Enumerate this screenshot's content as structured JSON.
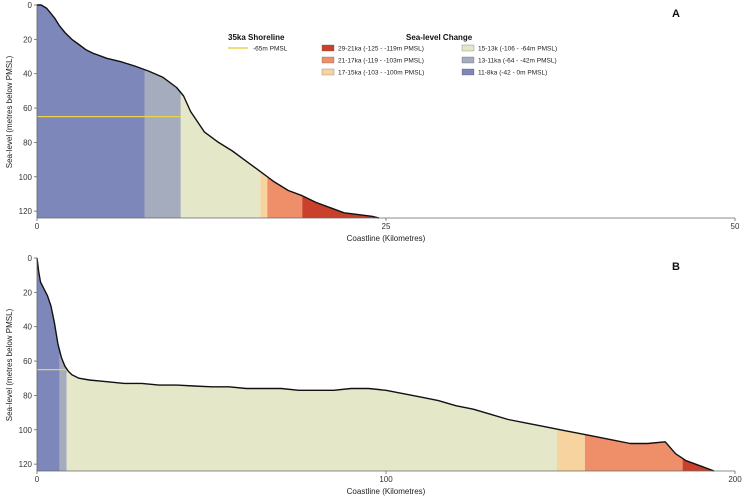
{
  "chart_data": [
    {
      "type": "area",
      "panel_label": "A",
      "xlabel": "Coastline (Kilometres)",
      "ylabel": "Sea-level (metres below PMSL)",
      "xlim": [
        0,
        50
      ],
      "ylim": [
        0,
        124
      ],
      "y_inverted": true,
      "x_ticks": [
        0,
        25,
        50
      ],
      "y_ticks": [
        0,
        20,
        40,
        60,
        80,
        100,
        120
      ],
      "grid": false,
      "profile": {
        "x": [
          0,
          0.3,
          0.7,
          1.0,
          1.3,
          1.6,
          2.0,
          2.5,
          3.0,
          3.5,
          4.0,
          5.0,
          6.0,
          7.0,
          8.0,
          9.0,
          10.0,
          10.5,
          11.0,
          12.0,
          13.0,
          14.0,
          15.0,
          16.0,
          17.0,
          18.0,
          19.0,
          20.0,
          21.0,
          22.0,
          23.0,
          24.0,
          24.5
        ],
        "depth": [
          0,
          0,
          2,
          5,
          8,
          12,
          16,
          20,
          23,
          26,
          28,
          31,
          33,
          35.5,
          38.5,
          42,
          48,
          53,
          62,
          74,
          80,
          85,
          91,
          97,
          103,
          108,
          111,
          115,
          118,
          121,
          122,
          123,
          124
        ]
      },
      "bands": [
        {
          "x0": 0,
          "x1": 7.7,
          "period": "11-8ka"
        },
        {
          "x0": 7.7,
          "x1": 10.3,
          "period": "13-11ka"
        },
        {
          "x0": 10.3,
          "x1": 16.0,
          "period": "15-13k"
        },
        {
          "x0": 16.0,
          "x1": 16.5,
          "period": "17-15ka"
        },
        {
          "x0": 16.5,
          "x1": 19.0,
          "period": "21-17ka"
        },
        {
          "x0": 19.0,
          "x1": 24.5,
          "period": "29-21ka"
        }
      ],
      "shoreline_35ka": {
        "depth": 65,
        "x0": 0,
        "x1": 10.3
      }
    },
    {
      "type": "area",
      "panel_label": "B",
      "xlabel": "Coastline (Kilometres)",
      "ylabel": "Sea-level (metres below PMSL)",
      "xlim": [
        0,
        200
      ],
      "ylim": [
        0,
        124
      ],
      "y_inverted": true,
      "x_ticks": [
        0,
        100,
        200
      ],
      "y_ticks": [
        0,
        20,
        40,
        60,
        80,
        100,
        120
      ],
      "grid": false,
      "profile": {
        "x": [
          0,
          0.5,
          1,
          2,
          3,
          4,
          5,
          6,
          7,
          8,
          9,
          10,
          12,
          15,
          20,
          25,
          30,
          35,
          40,
          45,
          50,
          55,
          60,
          65,
          70,
          75,
          80,
          85,
          90,
          95,
          100,
          105,
          110,
          115,
          120,
          125,
          130,
          135,
          140,
          145,
          150,
          155,
          160,
          165,
          170,
          175,
          180,
          183,
          186,
          190,
          194
        ],
        "depth": [
          0,
          8,
          14,
          18,
          22,
          28,
          38,
          50,
          58,
          63,
          66,
          68,
          70,
          71,
          72,
          73,
          73,
          74,
          74,
          74.5,
          75,
          75,
          76,
          76,
          76,
          77,
          77,
          77,
          76,
          76,
          77,
          79,
          81,
          83,
          86,
          88,
          91,
          94,
          96,
          98,
          100,
          102,
          104,
          106,
          108,
          108,
          107,
          114,
          118,
          121,
          124
        ]
      },
      "bands": [
        {
          "x0": 0,
          "x1": 6.5,
          "period": "11-8ka"
        },
        {
          "x0": 6.5,
          "x1": 8.5,
          "period": "13-11ka"
        },
        {
          "x0": 8.5,
          "x1": 149,
          "period": "15-13k"
        },
        {
          "x0": 149,
          "x1": 157,
          "period": "17-15ka"
        },
        {
          "x0": 157,
          "x1": 185,
          "period": "21-17ka"
        },
        {
          "x0": 185,
          "x1": 194,
          "period": "29-21ka"
        }
      ],
      "shoreline_35ka": {
        "depth": 65,
        "x0": 0,
        "x1": 9
      }
    }
  ],
  "legend": {
    "shoreline_title": "35ka Shoreline",
    "shoreline_label": "-65m PMSL",
    "shoreline_color": "#e8d44a",
    "sea_level_title": "Sea-level Change",
    "placement": "top-center of panel A",
    "items": [
      {
        "key": "29-21ka",
        "label": "29-21ka (-125 - -119m PMSL)",
        "color": "#c9412c"
      },
      {
        "key": "21-17ka",
        "label": "21-17ka (-119 - -103m PMSL)",
        "color": "#ee8f6a"
      },
      {
        "key": "17-15ka",
        "label": "17-15ka (-103 - -100m PMSL)",
        "color": "#f7d3a0"
      },
      {
        "key": "15-13k",
        "label": "15-13k (-106 - -64m PMSL)",
        "color": "#e5e7c9"
      },
      {
        "key": "13-11ka",
        "label": "13-11ka (-64 - -42m PMSL)",
        "color": "#a5acbd"
      },
      {
        "key": "11-8ka",
        "label": "11-8ka (-42 - 0m PMSL)",
        "color": "#7d87b9"
      }
    ]
  }
}
